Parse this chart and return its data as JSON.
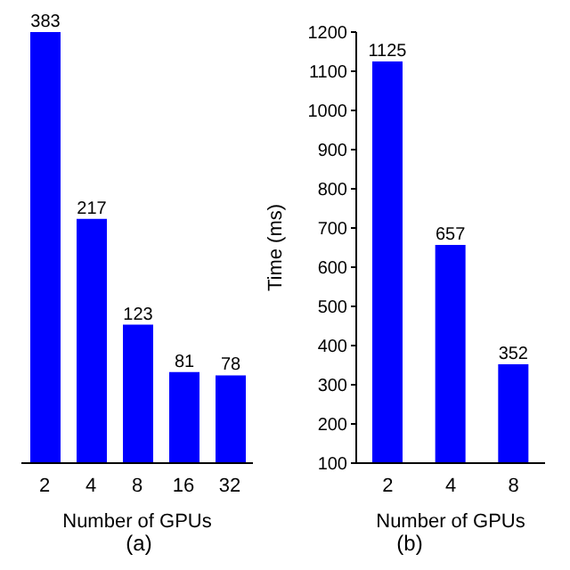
{
  "chart_data": [
    {
      "type": "bar",
      "title": "(a)",
      "xlabel": "Number of GPUs",
      "categories": [
        "2",
        "4",
        "8",
        "16",
        "32"
      ],
      "values": [
        383,
        217,
        123,
        81,
        78
      ],
      "data_labels": true,
      "color": "#0000ff",
      "grid": false,
      "legend": false,
      "tick_labels": "x"
    },
    {
      "type": "bar",
      "title": "(b)",
      "xlabel": "Number of GPUs",
      "ylabel": "Time (ms)",
      "categories": [
        "2",
        "4",
        "8"
      ],
      "values": [
        1125,
        657,
        352
      ],
      "color": "#0000ff",
      "ylim": [
        100,
        1200
      ],
      "yticks": [
        100,
        200,
        300,
        400,
        500,
        600,
        700,
        800,
        900,
        1000,
        1100,
        1200
      ],
      "data_labels": true,
      "grid": false,
      "legend": false
    }
  ]
}
